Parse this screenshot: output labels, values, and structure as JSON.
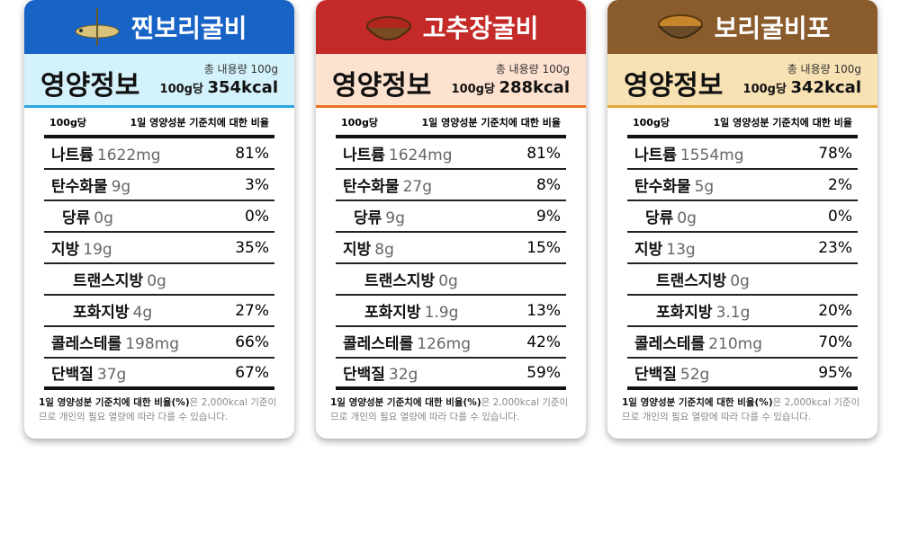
{
  "cards": [
    {
      "title": "찐보리굴비",
      "header": "영양정보",
      "total": "총 내용량 100g",
      "per": "100g당",
      "kcal": "354kcal",
      "col_left": "100g당",
      "col_right": "1일 영양성분 기준치에 대한 비율",
      "rows": [
        {
          "name": "나트륨",
          "amount": "1622mg",
          "pct": "81%"
        },
        {
          "name": "탄수화물",
          "amount": "9g",
          "pct": "3%"
        },
        {
          "name": "당류",
          "amount": "0g",
          "pct": "0%"
        },
        {
          "name": "지방",
          "amount": "19g",
          "pct": "35%"
        },
        {
          "name": "트랜스지방",
          "amount": "0g"
        },
        {
          "name": "포화지방",
          "amount": "4g",
          "pct": "27%"
        },
        {
          "name": "콜레스테롤",
          "amount": "198mg",
          "pct": "66%"
        },
        {
          "name": "단백질",
          "amount": "37g",
          "pct": "67%"
        }
      ],
      "note_bold": "1일 영양성분 기준치에 대한 비율(%)",
      "note": "은 2,000kcal 기준이므로 개인의 필요 열량에 따라 다를 수 있습니다."
    },
    {
      "title": "고추장굴비",
      "header": "영양정보",
      "total": "총 내용량 100g",
      "per": "100g당",
      "kcal": "288kcal",
      "col_left": "100g당",
      "col_right": "1일 영양성분 기준치에 대한 비율",
      "rows": [
        {
          "name": "나트륨",
          "amount": "1624mg",
          "pct": "81%"
        },
        {
          "name": "탄수화물",
          "amount": "27g",
          "pct": "8%"
        },
        {
          "name": "당류",
          "amount": "9g",
          "pct": "9%"
        },
        {
          "name": "지방",
          "amount": "8g",
          "pct": "15%"
        },
        {
          "name": "트랜스지방",
          "amount": "0g"
        },
        {
          "name": "포화지방",
          "amount": "1.9g",
          "pct": "13%"
        },
        {
          "name": "콜레스테롤",
          "amount": "126mg",
          "pct": "42%"
        },
        {
          "name": "단백질",
          "amount": "32g",
          "pct": "59%"
        }
      ],
      "note_bold": "1일 영양성분 기준치에 대한 비율(%)",
      "note": "은 2,000kcal 기준이므로 개인의 필요 열량에 따라 다를 수 있습니다."
    },
    {
      "title": "보리굴비포",
      "header": "영양정보",
      "total": "총 내용량 100g",
      "per": "100g당",
      "kcal": "342kcal",
      "col_left": "100g당",
      "col_right": "1일 영양성분 기준치에 대한 비율",
      "rows": [
        {
          "name": "나트륨",
          "amount": "1554mg",
          "pct": "78%"
        },
        {
          "name": "탄수화물",
          "amount": "5g",
          "pct": "2%"
        },
        {
          "name": "당류",
          "amount": "0g",
          "pct": "0%"
        },
        {
          "name": "지방",
          "amount": "13g",
          "pct": "23%"
        },
        {
          "name": "트랜스지방",
          "amount": "0g"
        },
        {
          "name": "포화지방",
          "amount": "3.1g",
          "pct": "20%"
        },
        {
          "name": "콜레스테롤",
          "amount": "210mg",
          "pct": "70%"
        },
        {
          "name": "단백질",
          "amount": "52g",
          "pct": "95%"
        }
      ],
      "note_bold": "1일 영양성분 기준치에 대한 비율(%)",
      "note": "은 2,000kcal 기준이므로 개인의 필요 열량에 따라 다를 수 있습니다."
    }
  ]
}
